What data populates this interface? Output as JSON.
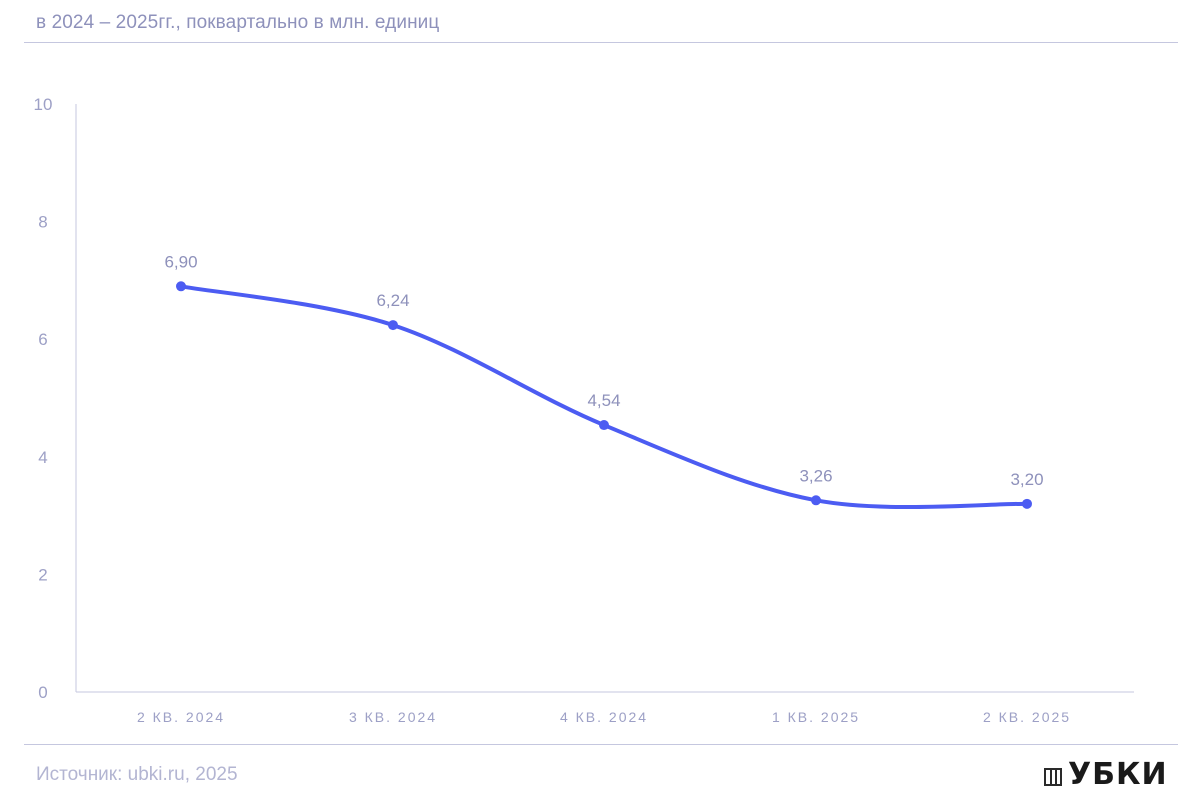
{
  "subtitle": "в 2024 – 2025гг., поквартально в млн. единиц",
  "footer": {
    "source": "Источник: ubki.ru, 2025",
    "logo_text": "УБКИ"
  },
  "chart_data": {
    "type": "line",
    "title": "",
    "subtitle": "в 2024 – 2025гг., поквартально в млн. единиц",
    "xlabel": "",
    "ylabel": "",
    "categories": [
      "2 КВ. 2024",
      "3 КВ. 2024",
      "4 КВ. 2024",
      "1 КВ. 2025",
      "2 КВ. 2025"
    ],
    "series": [
      {
        "values": [
          6.9,
          6.24,
          4.54,
          3.26,
          3.2
        ],
        "labels": [
          "6,90",
          "6,24",
          "4,54",
          "3,26",
          "3,20"
        ],
        "color": "#4c5cf2"
      }
    ],
    "ylim": [
      0,
      10
    ],
    "yticks": [
      0,
      2,
      4,
      6,
      8,
      10
    ],
    "grid": false,
    "legend": "none",
    "colors": {
      "line": "#4c5cf2",
      "axis": "#c5c7df",
      "tick_label": "#9da0c6",
      "data_label": "#8e91bb"
    }
  }
}
